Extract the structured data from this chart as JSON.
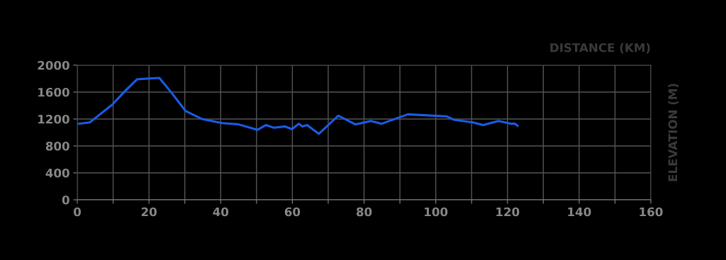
{
  "chart_data": {
    "type": "line",
    "xlabel": "DISTANCE (KM)",
    "ylabel": "ELEVATION (M)",
    "x": [
      0.5,
      3.5,
      5.4,
      9.7,
      13.4,
      16.7,
      19.3,
      22.9,
      26.6,
      30.2,
      34.8,
      40.4,
      45.0,
      50.3,
      52.6,
      54.9,
      57.9,
      59.9,
      61.8,
      62.8,
      64.1,
      67.4,
      72.8,
      77.6,
      81.9,
      84.9,
      92.2,
      103.0,
      105.0,
      110.3,
      113.2,
      117.5,
      121.1,
      122.1,
      122.8
    ],
    "series": [
      {
        "color": "#1a5ce6",
        "values": [
          1130,
          1150,
          1230,
          1410,
          1620,
          1790,
          1800,
          1810,
          1570,
          1320,
          1200,
          1140,
          1120,
          1040,
          1110,
          1070,
          1090,
          1050,
          1130,
          1090,
          1110,
          980,
          1250,
          1120,
          1170,
          1130,
          1270,
          1240,
          1190,
          1150,
          1110,
          1170,
          1130,
          1130,
          1100
        ]
      }
    ],
    "xlim": [
      0,
      160
    ],
    "xticks": [
      0,
      {
        "value": 10,
        "label": null
      },
      20,
      {
        "value": 30,
        "label": null
      },
      40,
      {
        "value": 50,
        "label": null
      },
      60,
      {
        "value": 70,
        "label": null
      },
      80,
      {
        "value": 90,
        "label": null
      },
      100,
      {
        "value": 110,
        "label": null
      },
      120,
      {
        "value": 130,
        "label": null
      },
      140,
      {
        "value": 150,
        "label": null
      },
      160
    ],
    "ylim": [
      0,
      2000
    ],
    "yticks": [
      0,
      400,
      800,
      1200,
      1600,
      2000
    ],
    "grid": true,
    "legend": false,
    "marker": "none",
    "line_style": "solid"
  }
}
